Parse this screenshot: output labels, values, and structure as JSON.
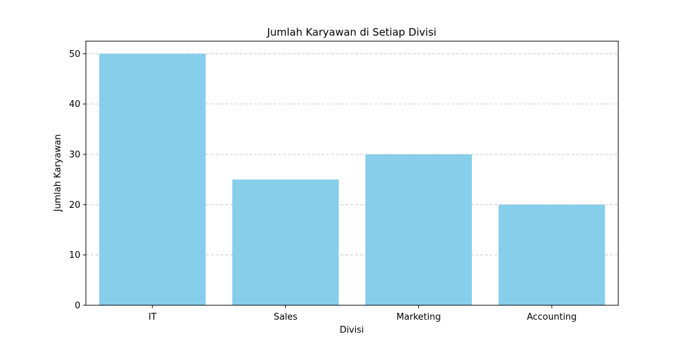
{
  "chart_data": {
    "type": "bar",
    "title": "Jumlah Karyawan di Setiap Divisi",
    "xlabel": "Divisi",
    "ylabel": "Jumlah Karyawan",
    "categories": [
      "IT",
      "Sales",
      "Marketing",
      "Accounting"
    ],
    "values": [
      50,
      25,
      30,
      20
    ],
    "ylim": [
      0,
      52.5
    ],
    "yticks": [
      0,
      10,
      20,
      30,
      40,
      50
    ],
    "grid": "y-dashed",
    "bar_color": "#87ceeb",
    "grid_color": "#c8c8c8"
  }
}
